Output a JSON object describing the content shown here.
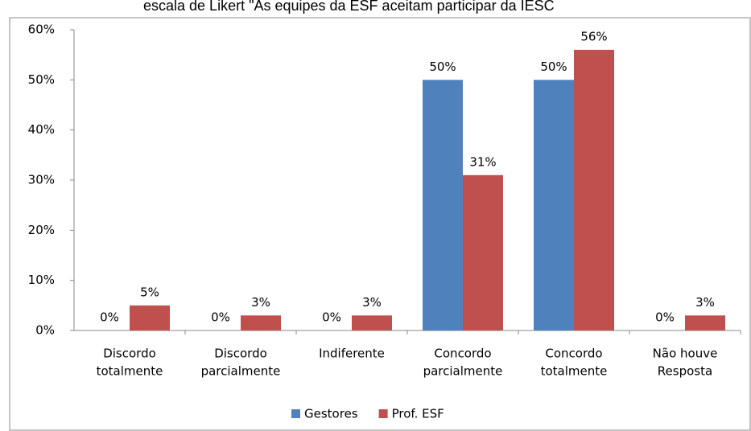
{
  "chart_data": {
    "type": "bar",
    "title": "escala de Likert \"As equipes da ESF aceitam participar da IESC",
    "categories": [
      [
        "Discordo",
        "totalmente"
      ],
      [
        "Discordo",
        "parcialmente"
      ],
      [
        "Indiferente"
      ],
      [
        "Concordo",
        "parcialmente"
      ],
      [
        "Concordo",
        "totalmente"
      ],
      [
        "Não houve",
        "Resposta"
      ]
    ],
    "series": [
      {
        "name": "Gestores",
        "color": "#4f81bd",
        "values": [
          0,
          0,
          0,
          50,
          50,
          0
        ],
        "value_labels": [
          "0%",
          "0%",
          "0%",
          "50%",
          "50%",
          "0%"
        ]
      },
      {
        "name": "Prof. ESF",
        "color": "#c0504d",
        "values": [
          5,
          3,
          3,
          31,
          56,
          3
        ],
        "value_labels": [
          "5%",
          "3%",
          "3%",
          "31%",
          "56%",
          "3%"
        ]
      }
    ],
    "ylim": [
      0,
      60
    ],
    "yticks": [
      {
        "value": 0,
        "label": "0%"
      },
      {
        "value": 10,
        "label": "10%"
      },
      {
        "value": 20,
        "label": "20%"
      },
      {
        "value": 30,
        "label": "30%"
      },
      {
        "value": 40,
        "label": "40%"
      },
      {
        "value": 50,
        "label": "50%"
      },
      {
        "value": 60,
        "label": "60%"
      }
    ],
    "grid": false,
    "legend": "bottom"
  }
}
